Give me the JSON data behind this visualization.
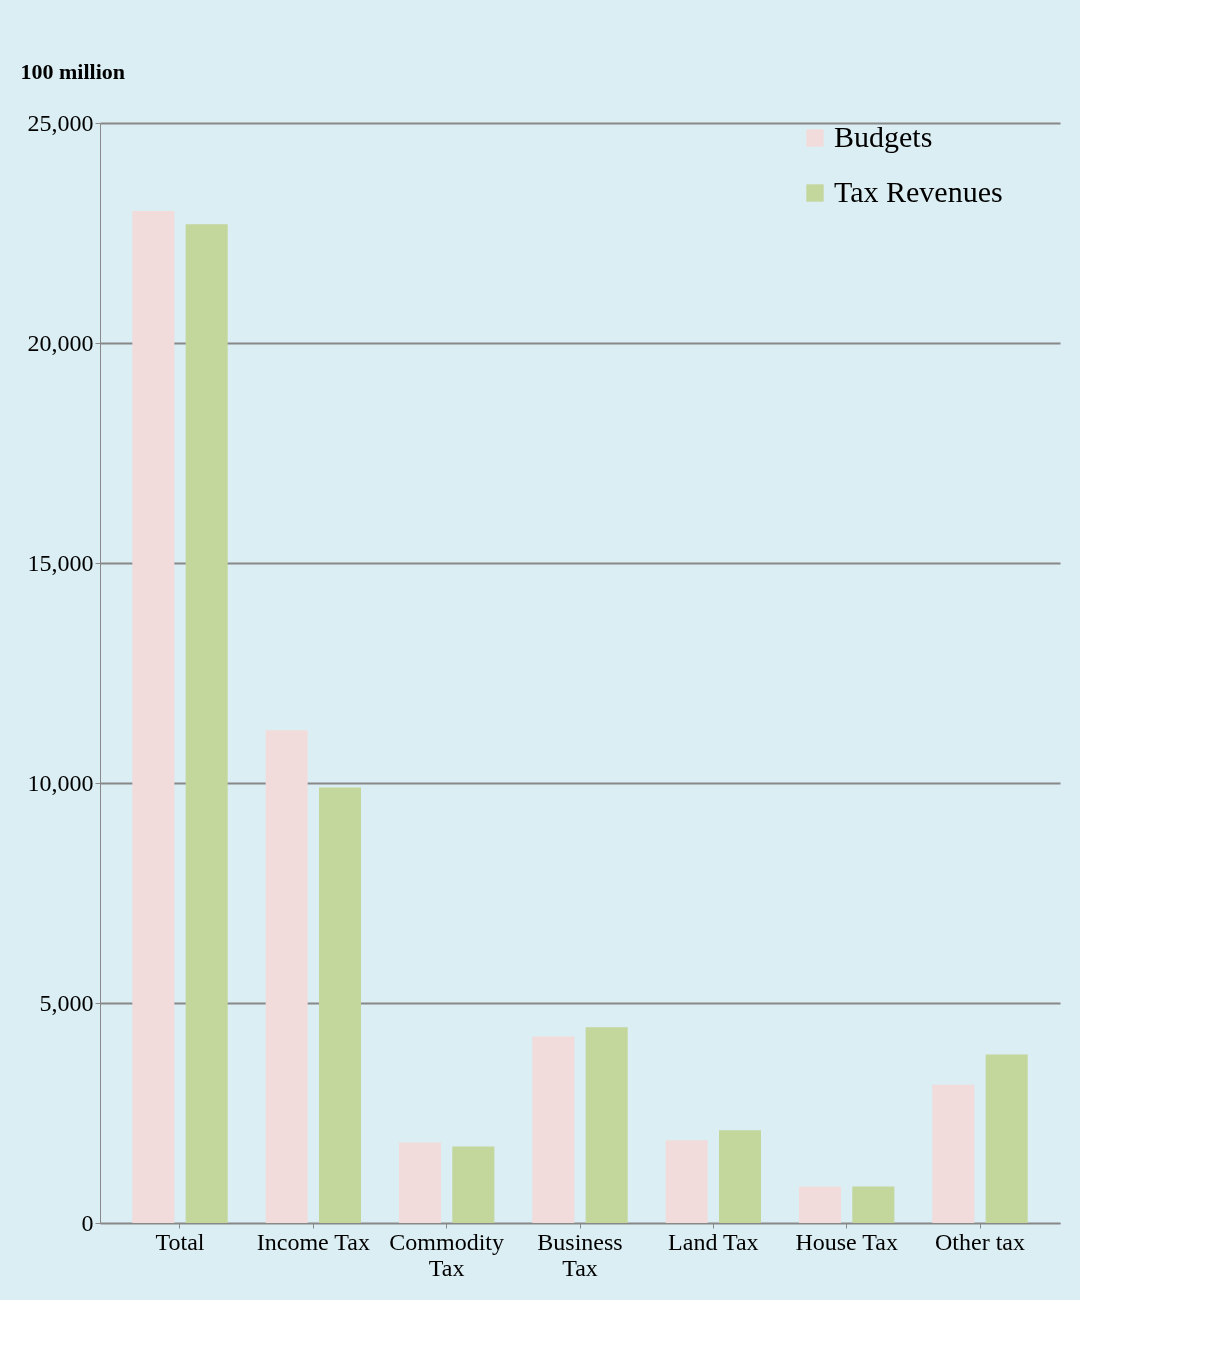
{
  "chart_data": {
    "type": "bar",
    "ylabel": "100 million",
    "categories": [
      "Total",
      "Income Tax",
      "Commodity Tax",
      "Business Tax",
      "Land Tax",
      "House Tax",
      "Other tax"
    ],
    "series": [
      {
        "name": "Budgets",
        "color": "#f2dcdb",
        "values": [
          23000,
          11200,
          1830,
          4240,
          1880,
          830,
          3140
        ]
      },
      {
        "name": "Tax Revenues",
        "color": "#c3d69b",
        "values": [
          22700,
          9900,
          1740,
          4450,
          2110,
          830,
          3830
        ]
      }
    ],
    "ylim": [
      0,
      25000
    ],
    "yticks": [
      {
        "value": 0,
        "label": "0"
      },
      {
        "value": 5000,
        "label": "5,000"
      },
      {
        "value": 10000,
        "label": "10,000"
      },
      {
        "value": 15000,
        "label": "15,000"
      },
      {
        "value": 20000,
        "label": "20,000"
      },
      {
        "value": 25000,
        "label": "25,000"
      }
    ],
    "grid": "y",
    "legend": "right"
  }
}
